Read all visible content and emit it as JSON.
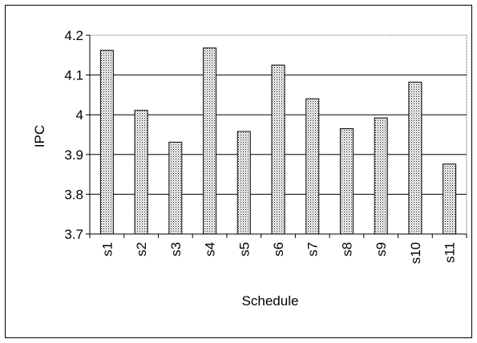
{
  "chart_data": {
    "type": "bar",
    "categories": [
      "s1",
      "s2",
      "s3",
      "s4",
      "s5",
      "s6",
      "s7",
      "s8",
      "s9",
      "s10",
      "s11"
    ],
    "series": [
      {
        "values": [
          4.162,
          4.011,
          3.931,
          4.168,
          3.958,
          4.125,
          4.04,
          3.965,
          3.992,
          4.082,
          3.876
        ]
      }
    ],
    "title": "",
    "xlabel": "Schedule",
    "ylabel": "IPC",
    "ylim": [
      3.7,
      4.2
    ],
    "yticks": [
      "3.7",
      "3.8",
      "3.9",
      "4",
      "4.1",
      "4.2"
    ],
    "grid": true,
    "legend": "none"
  }
}
